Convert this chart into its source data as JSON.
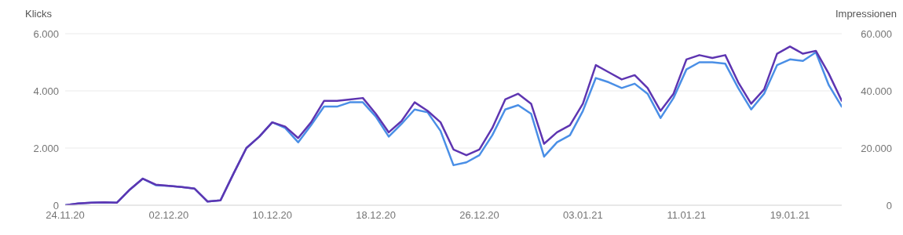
{
  "chart_data": {
    "type": "line",
    "ylabel": "Klicks",
    "y2label": "Impressionen",
    "categories": [
      "24.11.20",
      null,
      null,
      null,
      null,
      null,
      null,
      null,
      "02.12.20",
      null,
      null,
      null,
      null,
      null,
      null,
      null,
      "10.12.20",
      null,
      null,
      null,
      null,
      null,
      null,
      null,
      "18.12.20",
      null,
      null,
      null,
      null,
      null,
      null,
      null,
      "26.12.20",
      null,
      null,
      null,
      null,
      null,
      null,
      null,
      "03.01.21",
      null,
      null,
      null,
      null,
      null,
      null,
      null,
      "11.01.21",
      null,
      null,
      null,
      null,
      null,
      null,
      null,
      "19.01.21",
      null,
      null,
      null,
      null
    ],
    "series": [
      {
        "color": "#4a8fe6",
        "values": [
          0,
          60,
          90,
          100,
          90,
          550,
          930,
          700,
          680,
          640,
          580,
          130,
          170,
          1100,
          2000,
          2400,
          2900,
          2700,
          2200,
          2800,
          3450,
          3450,
          3600,
          3600,
          3100,
          2400,
          2850,
          3350,
          3250,
          2600,
          1400,
          1500,
          1750,
          2450,
          3350,
          3500,
          3200,
          1700,
          2200,
          2450,
          3300,
          4450,
          4300,
          4100,
          4250,
          3900,
          3050,
          3750,
          4750,
          5000,
          5000,
          4950,
          4100,
          3350,
          3900,
          4900,
          5100,
          5050,
          5350,
          4200,
          3450
        ]
      },
      {
        "color": "#5e35b1",
        "axis": "y2",
        "values": [
          0,
          600,
          900,
          1000,
          900,
          5500,
          9300,
          7200,
          6800,
          6400,
          5800,
          1300,
          1700,
          11000,
          20000,
          24000,
          29000,
          27500,
          23500,
          29000,
          36500,
          36500,
          37000,
          37500,
          32000,
          25500,
          29500,
          36000,
          33000,
          29000,
          19500,
          17500,
          19500,
          27000,
          37000,
          39000,
          35500,
          21500,
          25500,
          28000,
          35500,
          49000,
          46500,
          44000,
          45500,
          41000,
          33000,
          39000,
          51000,
          52500,
          51500,
          52500,
          43000,
          35500,
          40500,
          53000,
          55500,
          53000,
          54000,
          46000,
          36500
        ]
      }
    ],
    "ylim": [
      0,
      6000
    ],
    "yticks": [
      0,
      {
        "value": 2000,
        "label": "2.000"
      },
      {
        "value": 4000,
        "label": "4.000"
      },
      {
        "value": 6000,
        "label": "6.000"
      }
    ],
    "y2lim": [
      0,
      60000
    ],
    "y2ticks": [
      0,
      {
        "value": 20000,
        "label": "20.000"
      },
      {
        "value": 40000,
        "label": "40.000"
      },
      {
        "value": 60000,
        "label": "60.000"
      }
    ],
    "grid": "y",
    "legend": false,
    "marker": "none",
    "line_style": "solid"
  }
}
